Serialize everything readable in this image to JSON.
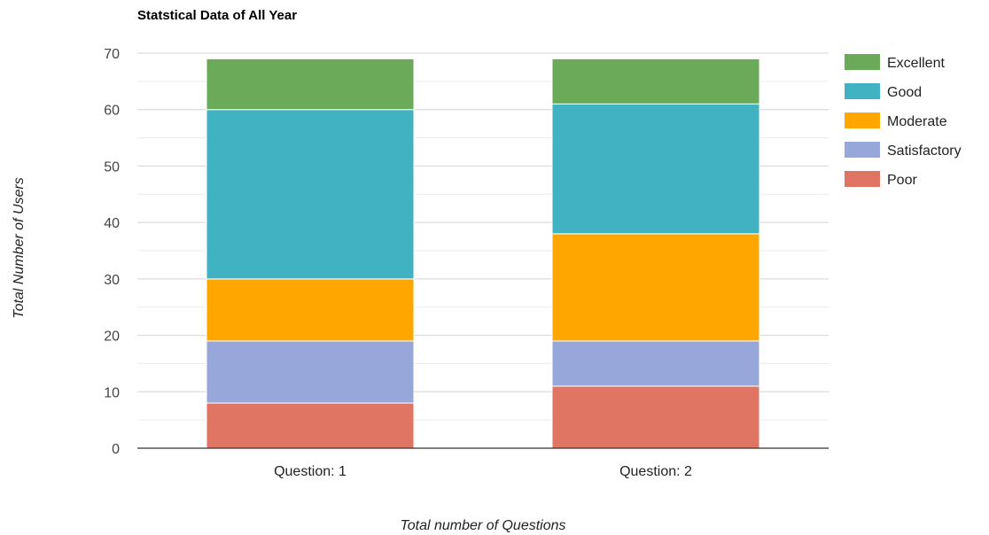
{
  "chart_data": {
    "type": "bar",
    "stacked": true,
    "title": "Statstical Data of All Year",
    "xlabel": "Total number of Questions",
    "ylabel": "Total Number of Users",
    "categories": [
      "Question: 1",
      "Question: 2"
    ],
    "ylim": [
      0,
      70
    ],
    "yticks": [
      0,
      10,
      20,
      30,
      40,
      50,
      60,
      70
    ],
    "grid": true,
    "legend_position": "right",
    "series": [
      {
        "name": "Poor",
        "color": "#e07563",
        "values": [
          8,
          11
        ]
      },
      {
        "name": "Satisfactory",
        "color": "#97a7da",
        "values": [
          11,
          8
        ]
      },
      {
        "name": "Moderate",
        "color": "#ffa700",
        "values": [
          11,
          19
        ]
      },
      {
        "name": "Good",
        "color": "#40b2c1",
        "values": [
          30,
          23
        ]
      },
      {
        "name": "Excellent",
        "color": "#6aaa58",
        "values": [
          9,
          8
        ]
      }
    ]
  }
}
